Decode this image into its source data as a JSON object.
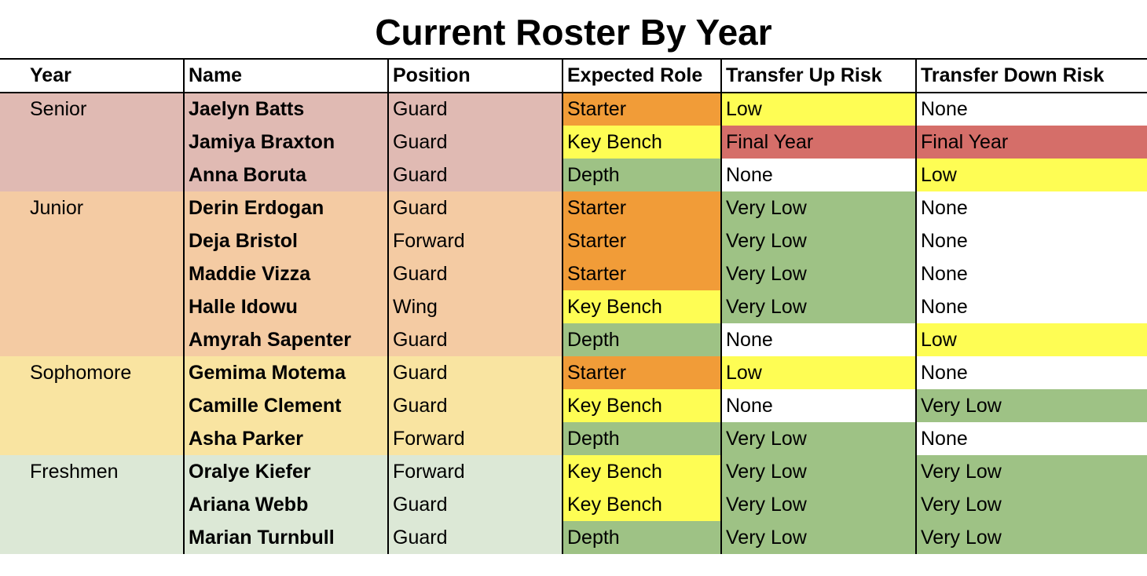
{
  "title": "Current Roster By Year",
  "headers": [
    "Year",
    "Name",
    "Position",
    "Expected Role",
    "Transfer Up Risk",
    "Transfer Down Risk"
  ],
  "colors": {
    "senior": "#e0bab3",
    "junior": "#f4cba3",
    "sophomore": "#f9e4a1",
    "freshmen": "#dce8d6",
    "starter": "#f19c38",
    "key_bench": "#fefd54",
    "depth": "#9ec285",
    "very_low": "#9ec285",
    "low": "#fefd54",
    "final_year": "#d56e69",
    "none": "#ffffff"
  },
  "groups": [
    {
      "year": "Senior",
      "color_key": "senior",
      "rows": 3
    },
    {
      "year": "Junior",
      "color_key": "junior",
      "rows": 5
    },
    {
      "year": "Sophomore",
      "color_key": "sophomore",
      "rows": 3
    },
    {
      "year": "Freshmen",
      "color_key": "freshmen",
      "rows": 3
    }
  ],
  "players": [
    {
      "name": "Jaelyn Batts",
      "position": "Guard",
      "role": "Starter",
      "up": "Low",
      "down": "None"
    },
    {
      "name": "Jamiya Braxton",
      "position": "Guard",
      "role": "Key Bench",
      "up": "Final Year",
      "down": "Final Year"
    },
    {
      "name": "Anna Boruta",
      "position": "Guard",
      "role": "Depth",
      "up": "None",
      "down": "Low"
    },
    {
      "name": "Derin Erdogan",
      "position": "Guard",
      "role": "Starter",
      "up": "Very Low",
      "down": "None"
    },
    {
      "name": "Deja Bristol",
      "position": "Forward",
      "role": "Starter",
      "up": "Very Low",
      "down": "None"
    },
    {
      "name": "Maddie Vizza",
      "position": "Guard",
      "role": "Starter",
      "up": "Very Low",
      "down": "None"
    },
    {
      "name": "Halle Idowu",
      "position": "Wing",
      "role": "Key Bench",
      "up": "Very Low",
      "down": "None"
    },
    {
      "name": "Amyrah Sapenter",
      "position": "Guard",
      "role": "Depth",
      "up": "None",
      "down": "Low"
    },
    {
      "name": "Gemima Motema",
      "position": "Guard",
      "role": "Starter",
      "up": "Low",
      "down": "None"
    },
    {
      "name": "Camille Clement",
      "position": "Guard",
      "role": "Key Bench",
      "up": "None",
      "down": "Very Low"
    },
    {
      "name": "Asha Parker",
      "position": "Forward",
      "role": "Depth",
      "up": "Very Low",
      "down": "None"
    },
    {
      "name": "Oralye Kiefer",
      "position": "Forward",
      "role": "Key Bench",
      "up": "Very Low",
      "down": "Very Low"
    },
    {
      "name": "Ariana Webb",
      "position": "Guard",
      "role": "Key Bench",
      "up": "Very Low",
      "down": "Very Low"
    },
    {
      "name": "Marian Turnbull",
      "position": "Guard",
      "role": "Depth",
      "up": "Very Low",
      "down": "Very Low"
    }
  ]
}
